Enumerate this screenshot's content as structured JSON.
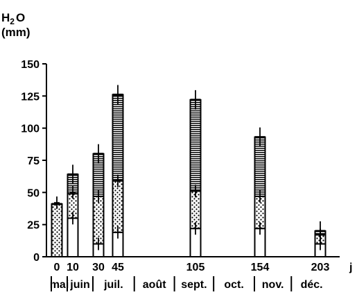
{
  "chart_data": {
    "type": "bar",
    "stacked": true,
    "ylabel_chem": "H",
    "ylabel_sub": "2",
    "ylabel_tail": "O",
    "ylabel_unit": "(mm)",
    "xlabel": "j",
    "ylim": [
      0,
      150
    ],
    "yticks": [
      "0",
      "25",
      "50",
      "75",
      "100",
      "125",
      "150"
    ],
    "ytick_values": [
      0,
      25,
      50,
      75,
      100,
      125,
      150
    ],
    "x": [
      0,
      10,
      30,
      45,
      105,
      154,
      203
    ],
    "x_labels": [
      "0",
      "10",
      "30",
      "45",
      "105",
      "154",
      "203"
    ],
    "segments": [
      {
        "fill": "white"
      },
      {
        "fill": "dotted"
      },
      {
        "fill": "hatched"
      }
    ],
    "bars": [
      {
        "x": 0,
        "stack": [
          0,
          41,
          0
        ],
        "total": 41,
        "errors": [
          42
        ]
      },
      {
        "x": 10,
        "stack": [
          30,
          19,
          15
        ],
        "total": 64,
        "errors": [
          30,
          50,
          64
        ]
      },
      {
        "x": 30,
        "stack": [
          10,
          37,
          33
        ],
        "total": 80,
        "errors": [
          10,
          47,
          80
        ]
      },
      {
        "x": 45,
        "stack": [
          19,
          40,
          67
        ],
        "total": 126,
        "errors": [
          19,
          59,
          126
        ]
      },
      {
        "x": 105,
        "stack": [
          22,
          29,
          71
        ],
        "total": 122,
        "errors": [
          22,
          51,
          122
        ]
      },
      {
        "x": 154,
        "stack": [
          22,
          25,
          46
        ],
        "total": 93,
        "errors": [
          22,
          47,
          93
        ]
      },
      {
        "x": 203,
        "stack": [
          10,
          7,
          3
        ],
        "total": 20,
        "errors": [
          10,
          17,
          20
        ]
      }
    ],
    "months": [
      {
        "label": "mai",
        "start": 0,
        "end": 10
      },
      {
        "label": "juin",
        "start": 10,
        "end": 30
      },
      {
        "label": "juil.",
        "start": 30,
        "end": 62
      },
      {
        "label": "août",
        "start": 62,
        "end": 93
      },
      {
        "label": "sept.",
        "start": 93,
        "end": 123
      },
      {
        "label": "oct.",
        "start": 123,
        "end": 154
      },
      {
        "label": "nov.",
        "start": 154,
        "end": 184
      },
      {
        "label": "déc.",
        "start": 184,
        "end": 215
      }
    ],
    "grid": false,
    "legend": "none",
    "colors": {
      "ink": "#000000",
      "paper": "#ffffff"
    }
  }
}
